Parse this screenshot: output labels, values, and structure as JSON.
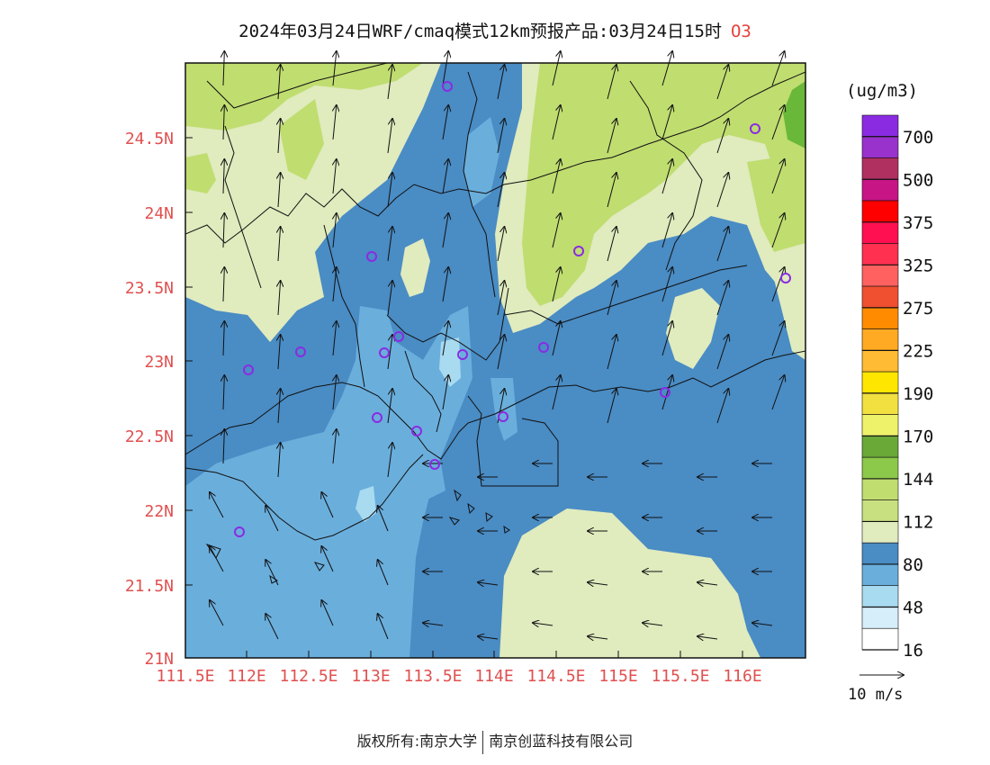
{
  "title": {
    "text": "2024年03月24日WRF/cmaq模式12km预报产品:03月24日15时",
    "pollutant": "O3"
  },
  "axes": {
    "longitude_ticks": [
      "111.5E",
      "112E",
      "112.5E",
      "113E",
      "113.5E",
      "114E",
      "114.5E",
      "115E",
      "115.5E",
      "116E"
    ],
    "latitude_ticks": [
      "24.5N",
      "24N",
      "23.5N",
      "23N",
      "22.5N",
      "22N",
      "21.5N",
      "21N"
    ],
    "tick_color": "#e05050"
  },
  "legend": {
    "unit": "(ug/m3)",
    "labels": [
      "700",
      "500",
      "375",
      "325",
      "275",
      "225",
      "190",
      "170",
      "144",
      "112",
      "80",
      "48",
      "16"
    ],
    "colors_top_to_bottom": [
      "#8a2be2",
      "#9932cc",
      "#b03060",
      "#c71585",
      "#ff0000",
      "#ff1050",
      "#ff3050",
      "#ff6060",
      "#f05030",
      "#ff8c00",
      "#ffaa22",
      "#ffbb33",
      "#ffe600",
      "#f2e040",
      "#eef26a",
      "#6aa838",
      "#8cc84a",
      "#c0dd70",
      "#c8e080",
      "#e0ebbe",
      "#4a8cc4",
      "#6aaedc",
      "#a8daf0",
      "#d6eefa",
      "#ffffff"
    ]
  },
  "wind_scale": {
    "label": "10 m/s"
  },
  "footer": {
    "left": "版权所有:南京大学",
    "right": "南京创蓝科技有限公司"
  },
  "map_colors": {
    "band_16_48": "#a8daf0",
    "band_48_80_light": "#6aaedc",
    "band_48_80": "#4a8cc4",
    "band_80_112": "#e0ebbe",
    "band_112_144": "#c0dd70",
    "band_144": "#6ab83a",
    "station_marker": "#8a2be2"
  }
}
